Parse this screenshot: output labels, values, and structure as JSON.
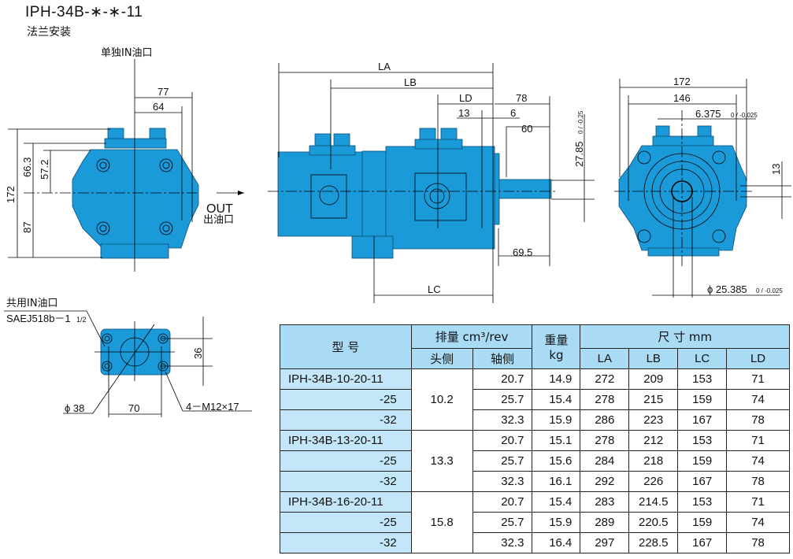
{
  "title": "IPH-34B-∗-∗-11",
  "subtitle": "法兰安装",
  "colors": {
    "pump_body": "#1a9ad8",
    "table_header": "#a9dcf4",
    "model_cell": "#c3e7f8"
  },
  "front_view": {
    "in_port": "单独IN油口",
    "out_en": "OUT",
    "out_cn": "出油口",
    "dims": {
      "d77": "77",
      "d64": "64",
      "d172": "172",
      "d663": "66.3",
      "d572": "57.2",
      "d87": "87"
    }
  },
  "side_view": {
    "LA": "LA",
    "LB": "LB",
    "LD": "LD",
    "LC": "LC",
    "d78": "78",
    "d13": "13",
    "d6": "6",
    "d60": "60",
    "d695": "69.5",
    "d2785": "27.85",
    "tol_2785": "0 / -0.25"
  },
  "rear_view": {
    "d172": "172",
    "d146": "146",
    "d6375": "6.375",
    "tol_6375": "0 / -0.025",
    "d13": "13",
    "d25385": "ϕ 25.385",
    "tol_25385": "0 / -0.025"
  },
  "port_view": {
    "label": "共用IN油口",
    "spec": "SAEJ518b－1",
    "spec_frac": "1/2",
    "d36": "36",
    "d70": "70",
    "phi38": "ϕ 38",
    "bolts": "4－M12×17"
  },
  "table": {
    "h_model": "型 号",
    "h_disp": "排量  cm³/rev",
    "h_head": "头侧",
    "h_shaft": "轴侧",
    "h_weight": "重量",
    "h_kg": "kg",
    "h_dims": "尺 寸    mm",
    "h_LA": "LA",
    "h_LB": "LB",
    "h_LC": "LC",
    "h_LD": "LD",
    "groups": [
      {
        "head": "10.2",
        "rows": [
          {
            "model": "IPH-34B-10-20-11",
            "shaft": "20.7",
            "kg": "14.9",
            "LA": "272",
            "LB": "209",
            "LC": "153",
            "LD": "71"
          },
          {
            "model": "-25",
            "shaft": "25.7",
            "kg": "15.4",
            "LA": "278",
            "LB": "215",
            "LC": "159",
            "LD": "74"
          },
          {
            "model": "-32",
            "shaft": "32.3",
            "kg": "15.9",
            "LA": "286",
            "LB": "223",
            "LC": "167",
            "LD": "78"
          }
        ]
      },
      {
        "head": "13.3",
        "rows": [
          {
            "model": "IPH-34B-13-20-11",
            "shaft": "20.7",
            "kg": "15.1",
            "LA": "278",
            "LB": "212",
            "LC": "153",
            "LD": "71"
          },
          {
            "model": "-25",
            "shaft": "25.7",
            "kg": "15.6",
            "LA": "284",
            "LB": "218",
            "LC": "159",
            "LD": "74"
          },
          {
            "model": "-32",
            "shaft": "32.3",
            "kg": "16.1",
            "LA": "292",
            "LB": "226",
            "LC": "167",
            "LD": "78"
          }
        ]
      },
      {
        "head": "15.8",
        "rows": [
          {
            "model": "IPH-34B-16-20-11",
            "shaft": "20.7",
            "kg": "15.4",
            "LA": "283",
            "LB": "214.5",
            "LC": "153",
            "LD": "71"
          },
          {
            "model": "-25",
            "shaft": "25.7",
            "kg": "15.9",
            "LA": "289",
            "LB": "220.5",
            "LC": "159",
            "LD": "74"
          },
          {
            "model": "-32",
            "shaft": "32.3",
            "kg": "16.4",
            "LA": "297",
            "LB": "228.5",
            "LC": "167",
            "LD": "78"
          }
        ]
      }
    ]
  }
}
